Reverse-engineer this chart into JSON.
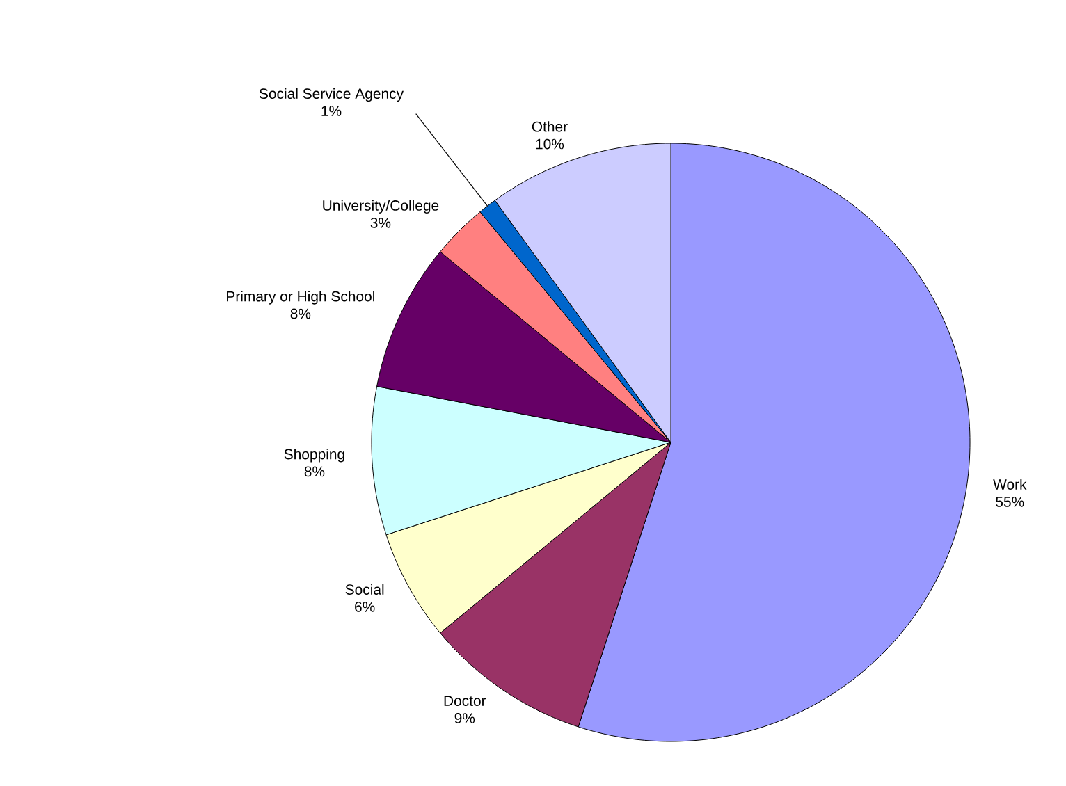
{
  "chart_data": {
    "type": "pie",
    "categories": [
      "Work",
      "Doctor",
      "Social",
      "Shopping",
      "Primary or High School",
      "University/College",
      "Social Service Agency",
      "Other"
    ],
    "values": [
      55,
      9,
      6,
      8,
      8,
      3,
      1,
      10
    ],
    "value_labels": [
      "55%",
      "9%",
      "6%",
      "8%",
      "8%",
      "3%",
      "1%",
      "10%"
    ],
    "colors": [
      "#9999ff",
      "#993366",
      "#ffffcc",
      "#ccffff",
      "#660066",
      "#ff8080",
      "#0066cc",
      "#ccccff"
    ]
  }
}
